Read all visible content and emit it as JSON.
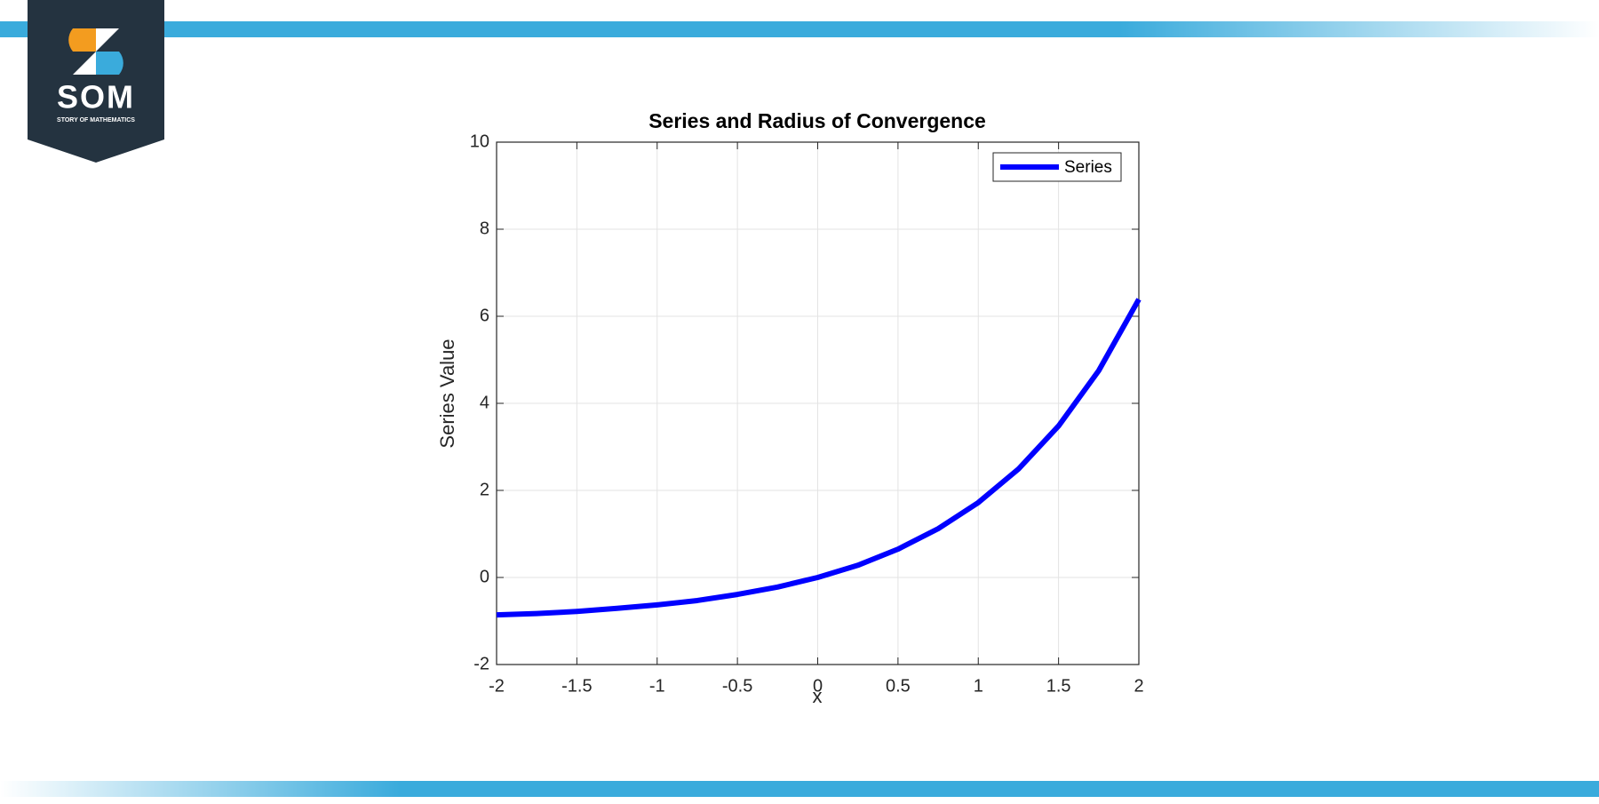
{
  "logo": {
    "text": "SOM",
    "subtitle": "STORY OF MATHEMATICS"
  },
  "chart_data": {
    "type": "line",
    "title": "Series and Radius of Convergence",
    "x_label": "x",
    "y_label": "Series Value",
    "x": [
      -2,
      -1.75,
      -1.5,
      -1.25,
      -1,
      -0.75,
      -0.5,
      -0.25,
      0,
      0.25,
      0.5,
      0.75,
      1,
      1.25,
      1.5,
      1.75,
      2
    ],
    "series": [
      {
        "name": "Series",
        "color": "#0000ff",
        "values": [
          -0.86,
          -0.83,
          -0.78,
          -0.71,
          -0.63,
          -0.53,
          -0.39,
          -0.22,
          0,
          0.28,
          0.65,
          1.12,
          1.72,
          2.49,
          3.48,
          4.75,
          6.39
        ]
      }
    ],
    "xlim": [
      -2,
      2
    ],
    "xticks": [
      -2,
      -1.5,
      -1,
      -0.5,
      0,
      0.5,
      1,
      1.5,
      2
    ],
    "ylim": [
      -2,
      10
    ],
    "yticks": [
      -2,
      0,
      2,
      4,
      6,
      8,
      10
    ],
    "grid": true,
    "legend": "northeast"
  }
}
